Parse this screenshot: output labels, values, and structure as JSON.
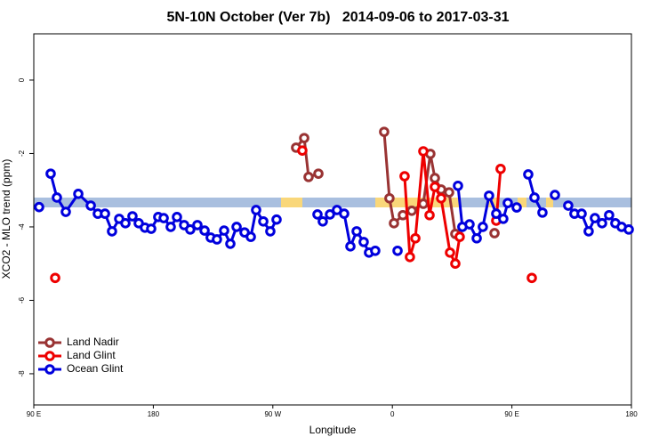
{
  "chart_data": {
    "type": "line",
    "title": "5N-10N October (Ver 7b)   2014-09-06 to 2017-03-31",
    "x_label": "Longitude",
    "y_label": "XCO2 - MLO trend (ppm)",
    "xlim": [
      90,
      540
    ],
    "xticks": [
      {
        "value": 90,
        "label": "90 E"
      },
      {
        "value": 180,
        "label": "180"
      },
      {
        "value": 270,
        "label": "90 W"
      },
      {
        "value": 360,
        "label": "0"
      },
      {
        "value": 450,
        "label": "90 E"
      },
      {
        "value": 540,
        "label": "180"
      }
    ],
    "ylim": [
      -8.85,
      1.26
    ],
    "yticks": [
      0,
      -2,
      -4,
      -6,
      -8
    ],
    "legend": "bottom-left",
    "series": [
      {
        "name": "Land Nadir",
        "color": "#993333",
        "x": [
          287.5,
          293.6,
          296.9,
          304.3,
          null,
          353.8,
          357.8,
          361.2,
          367.9,
          374.6,
          383.3,
          388.6,
          392.0,
          396.7,
          402.7,
          407.4,
          null,
          436.9
        ],
        "values": [
          -1.84,
          -1.58,
          -2.64,
          -2.55,
          null,
          -1.41,
          -3.22,
          -3.9,
          -3.68,
          -3.56,
          -3.37,
          -2.01,
          -2.67,
          -2.98,
          -3.06,
          -4.19,
          null,
          -4.17
        ]
      },
      {
        "name": "Land Glint",
        "color": "#ee0000",
        "x": [
          106.1,
          null,
          292.2,
          null,
          369.2,
          373.2,
          377.3,
          383.3,
          388.0,
          392.0,
          396.7,
          403.4,
          407.4,
          410.7,
          null,
          438.2,
          441.5,
          null,
          465.0
        ],
        "values": [
          -5.39,
          null,
          -1.92,
          null,
          -2.62,
          -4.82,
          -4.31,
          -1.94,
          -3.68,
          -2.91,
          -3.22,
          -4.7,
          -5.0,
          -4.27,
          null,
          -3.83,
          -2.42,
          null,
          -5.39
        ]
      },
      {
        "name": "Ocean Glint",
        "color": "#0000dd",
        "x": [
          94.0,
          null,
          102.7,
          107.4,
          114.1,
          123.5,
          132.9,
          138.2,
          143.6,
          148.9,
          154.3,
          159.0,
          164.3,
          169.0,
          173.7,
          178.4,
          183.7,
          187.8,
          193.1,
          197.8,
          203.2,
          207.8,
          213.2,
          218.6,
          223.2,
          227.9,
          233.3,
          238.0,
          242.7,
          248.7,
          253.4,
          257.4,
          262.8,
          268.1,
          272.8,
          null,
          303.6,
          307.6,
          313.0,
          318.3,
          323.7,
          328.4,
          333.1,
          338.4,
          342.4,
          347.1,
          null,
          363.9,
          null,
          409.4,
          412.7,
          418.1,
          423.5,
          428.1,
          432.8,
          438.2,
          443.5,
          446.9,
          453.6,
          null,
          462.3,
          467.0,
          473.0,
          null,
          482.4,
          null,
          492.4,
          497.1,
          502.5,
          507.8,
          512.5,
          517.9,
          523.2,
          527.9,
          532.6,
          538.0
        ],
        "values": [
          -3.46,
          null,
          -2.55,
          -3.2,
          -3.59,
          -3.1,
          -3.42,
          -3.64,
          -3.64,
          -4.12,
          -3.78,
          -3.9,
          -3.71,
          -3.9,
          -4.02,
          -4.05,
          -3.73,
          -3.76,
          -4.0,
          -3.73,
          -3.95,
          -4.07,
          -3.95,
          -4.1,
          -4.29,
          -4.34,
          -4.1,
          -4.46,
          -4.0,
          -4.15,
          -4.27,
          -3.54,
          -3.85,
          -4.12,
          -3.8,
          null,
          -3.66,
          -3.85,
          -3.66,
          -3.54,
          -3.64,
          -4.53,
          -4.12,
          -4.41,
          -4.7,
          -4.65,
          null,
          -4.65,
          null,
          -2.88,
          -4.0,
          -3.93,
          -4.31,
          -4.0,
          -3.15,
          -3.64,
          -3.78,
          -3.35,
          -3.47,
          null,
          -2.57,
          -3.2,
          -3.61,
          null,
          -3.13,
          null,
          -3.42,
          -3.64,
          -3.64,
          -4.12,
          -3.76,
          -3.9,
          -3.68,
          -3.9,
          -4.0,
          -4.07
        ]
      }
    ]
  }
}
